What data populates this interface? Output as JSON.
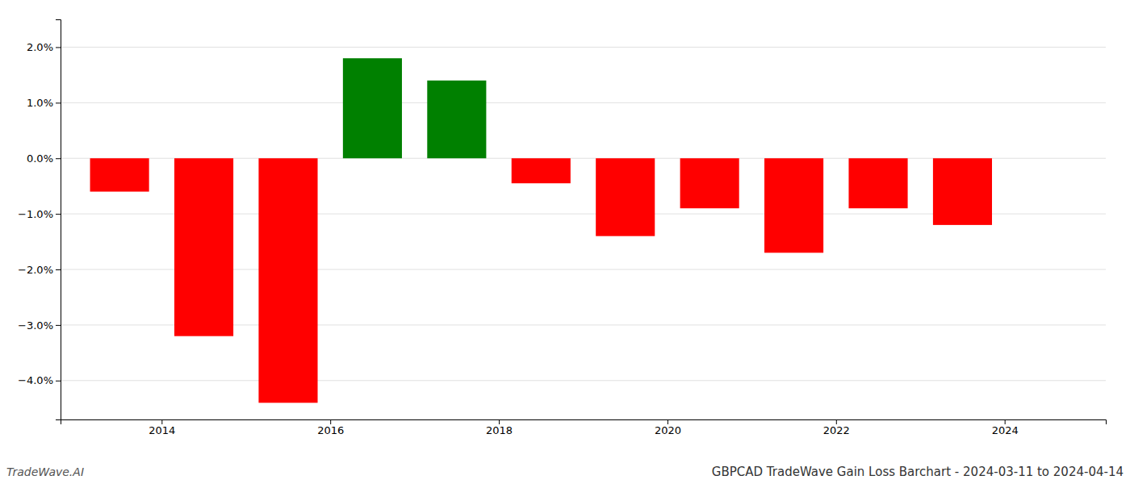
{
  "chart_data": {
    "type": "bar",
    "title": "GBPCAD TradeWave Gain Loss Barchart - 2024-03-11 to 2024-04-14",
    "annotations": [
      "TradeWave.AI"
    ],
    "x": [
      2013.5,
      2014.5,
      2015.5,
      2016.5,
      2017.5,
      2018.5,
      2019.5,
      2020.5,
      2021.5,
      2022.5,
      2023.5
    ],
    "values": [
      -0.006,
      -0.032,
      -0.044,
      0.018,
      0.014,
      -0.0045,
      -0.014,
      -0.009,
      -0.017,
      -0.009,
      -0.012
    ],
    "colors": [
      "#ff0000",
      "#ff0000",
      "#ff0000",
      "#008000",
      "#008000",
      "#ff0000",
      "#ff0000",
      "#ff0000",
      "#ff0000",
      "#ff0000",
      "#ff0000"
    ],
    "xlim": [
      2012.8,
      2025.2
    ],
    "xticks": [
      2014,
      2016,
      2018,
      2020,
      2022,
      2024
    ],
    "ylim": [
      -0.047,
      0.025
    ],
    "yticks": [
      {
        "value": -0.04,
        "label": "−4.0%"
      },
      {
        "value": -0.03,
        "label": "−3.0%"
      },
      {
        "value": -0.02,
        "label": "−2.0%"
      },
      {
        "value": -0.01,
        "label": "−1.0%"
      },
      {
        "value": 0,
        "label": "0.0%"
      },
      {
        "value": 0.01,
        "label": "1.0%"
      },
      {
        "value": 0.02,
        "label": "2.0%"
      }
    ],
    "grid": true
  }
}
